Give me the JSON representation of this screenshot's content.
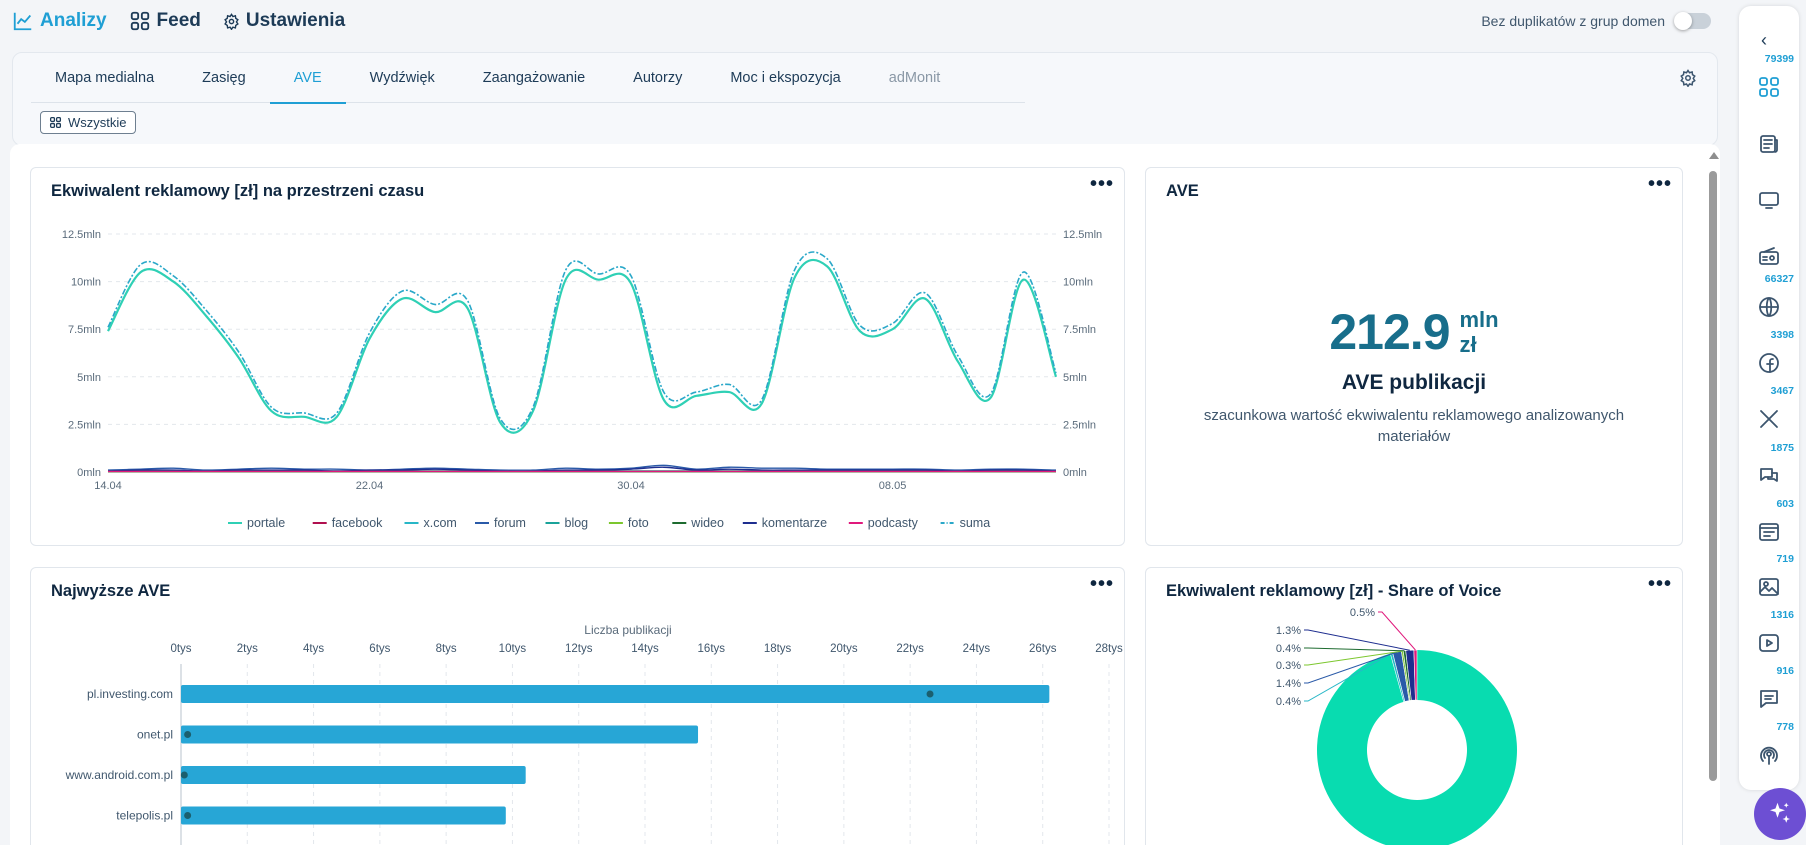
{
  "topnav": {
    "items": [
      {
        "label": "Analizy",
        "icon": "chart-line-icon"
      },
      {
        "label": "Feed",
        "icon": "grid-icon"
      },
      {
        "label": "Ustawienia",
        "icon": "gear-icon"
      }
    ],
    "duplicates_toggle_label": "Bez duplikatów z grup domen",
    "duplicates_toggle_on": false
  },
  "tabs": [
    "Mapa medialna",
    "Zasięg",
    "AVE",
    "Wydźwięk",
    "Zaangażowanie",
    "Autorzy",
    "Moc i ekspozycja",
    "adMonit"
  ],
  "active_tab": "AVE",
  "filter_chip": "Wszystkie",
  "cards": {
    "time_chart_title": "Ekwiwalent reklamowy [zł] na przestrzeni czasu",
    "ave_title": "AVE",
    "top_ave_title": "Najwyższe AVE",
    "sov_title": "Ekwiwalent reklamowy [zł] - Share of Voice",
    "menu_glyph": "•••"
  },
  "ave_summary": {
    "value": "212.9",
    "unit_line1": "mln",
    "unit_line2": "zł",
    "label": "AVE publikacji",
    "description": "szacunkowa wartość ekwiwalentu reklamowego analizowanych materiałów"
  },
  "sidebar": {
    "collapse_glyph": "‹",
    "items": [
      {
        "count": "79399",
        "icon": "grid-icon",
        "active": true
      },
      {
        "count": "",
        "icon": "newspaper-icon"
      },
      {
        "count": "",
        "icon": "tv-icon"
      },
      {
        "count": "",
        "icon": "radio-icon"
      },
      {
        "count": "66327",
        "icon": "globe-icon"
      },
      {
        "count": "3398",
        "icon": "facebook-icon"
      },
      {
        "count": "3467",
        "icon": "x-icon"
      },
      {
        "count": "1875",
        "icon": "forum-icon"
      },
      {
        "count": "603",
        "icon": "blog-icon"
      },
      {
        "count": "719",
        "icon": "photo-icon"
      },
      {
        "count": "1316",
        "icon": "video-icon"
      },
      {
        "count": "916",
        "icon": "comment-icon"
      },
      {
        "count": "778",
        "icon": "podcast-icon"
      }
    ],
    "magic_icon": "sparkle-icon"
  },
  "colors": {
    "accent": "#1f9fd4",
    "portale": "#2fd0b5",
    "facebook": "#b0104f",
    "x_com": "#28b7c7",
    "forum": "#2a5aa8",
    "blog": "#1aa39a",
    "foto": "#7cc72e",
    "wideo": "#1d6b2f",
    "komentarze": "#1e2e8f",
    "podcasty": "#e0197c",
    "suma": "#2aa8c9",
    "bar": "#27a6d6",
    "donut_main": "#08dcb0"
  },
  "chart_data": [
    {
      "type": "line",
      "title": "Ekwiwalent reklamowy [zł] na przestrzeni czasu",
      "x": [
        "14.04",
        "15.04",
        "16.04",
        "17.04",
        "18.04",
        "19.04",
        "20.04",
        "21.04",
        "22.04",
        "23.04",
        "24.04",
        "25.04",
        "26.04",
        "27.04",
        "28.04",
        "29.04",
        "30.04",
        "01.05",
        "02.05",
        "03.05",
        "04.05",
        "05.05",
        "06.05",
        "07.05",
        "08.05",
        "09.05",
        "10.05",
        "11.05",
        "12.05",
        "13.05"
      ],
      "x_ticks": [
        "14.04",
        "22.04",
        "30.04",
        "08.05"
      ],
      "y_ticks": [
        "0mln",
        "2.5mln",
        "5mln",
        "7.5mln",
        "10mln",
        "12.5mln"
      ],
      "y2_ticks": [
        "0mln",
        "2.5mln",
        "5mln",
        "7.5mln",
        "10mln",
        "12.5mln"
      ],
      "ylim": [
        0,
        12.5
      ],
      "grid": true,
      "legend_position": "bottom",
      "series": [
        {
          "name": "portale",
          "values": [
            7.4,
            10.5,
            10.0,
            8.2,
            6.0,
            3.2,
            2.9,
            2.9,
            7.0,
            9.1,
            8.4,
            8.6,
            2.6,
            3.2,
            10.1,
            10.1,
            9.9,
            3.8,
            4.0,
            4.2,
            3.6,
            10.2,
            10.8,
            7.4,
            7.5,
            9.1,
            5.8,
            3.9,
            10.1,
            5.0
          ]
        },
        {
          "name": "facebook",
          "values": [
            0.05,
            0.05,
            0.05,
            0.05,
            0.05,
            0.05,
            0.05,
            0.05,
            0.05,
            0.05,
            0.05,
            0.05,
            0.05,
            0.05,
            0.05,
            0.05,
            0.05,
            0.05,
            0.05,
            0.05,
            0.05,
            0.05,
            0.05,
            0.05,
            0.05,
            0.05,
            0.05,
            0.05,
            0.05,
            0.05
          ]
        },
        {
          "name": "x.com",
          "values": [
            0.05,
            0.05,
            0.05,
            0.05,
            0.05,
            0.05,
            0.05,
            0.05,
            0.05,
            0.05,
            0.05,
            0.05,
            0.05,
            0.05,
            0.05,
            0.05,
            0.05,
            0.05,
            0.05,
            0.05,
            0.05,
            0.05,
            0.05,
            0.05,
            0.05,
            0.05,
            0.05,
            0.05,
            0.05,
            0.05
          ]
        },
        {
          "name": "forum",
          "values": [
            0.1,
            0.15,
            0.2,
            0.1,
            0.15,
            0.2,
            0.15,
            0.15,
            0.1,
            0.15,
            0.2,
            0.15,
            0.1,
            0.1,
            0.2,
            0.15,
            0.2,
            0.35,
            0.15,
            0.25,
            0.2,
            0.2,
            0.15,
            0.15,
            0.15,
            0.15,
            0.1,
            0.15,
            0.15,
            0.1
          ]
        },
        {
          "name": "blog",
          "values": [
            0.05,
            0.05,
            0.05,
            0.05,
            0.05,
            0.05,
            0.05,
            0.05,
            0.05,
            0.05,
            0.05,
            0.05,
            0.05,
            0.05,
            0.05,
            0.05,
            0.05,
            0.05,
            0.05,
            0.05,
            0.05,
            0.05,
            0.05,
            0.05,
            0.05,
            0.05,
            0.05,
            0.05,
            0.05,
            0.05
          ]
        },
        {
          "name": "foto",
          "values": [
            0.02,
            0.02,
            0.02,
            0.02,
            0.02,
            0.02,
            0.02,
            0.02,
            0.02,
            0.02,
            0.02,
            0.02,
            0.02,
            0.02,
            0.02,
            0.02,
            0.02,
            0.02,
            0.02,
            0.02,
            0.02,
            0.02,
            0.02,
            0.02,
            0.02,
            0.02,
            0.02,
            0.02,
            0.02,
            0.02
          ]
        },
        {
          "name": "wideo",
          "values": [
            0.02,
            0.02,
            0.02,
            0.02,
            0.02,
            0.02,
            0.02,
            0.02,
            0.02,
            0.02,
            0.02,
            0.02,
            0.02,
            0.02,
            0.02,
            0.02,
            0.02,
            0.02,
            0.02,
            0.02,
            0.02,
            0.02,
            0.02,
            0.02,
            0.02,
            0.02,
            0.02,
            0.02,
            0.02,
            0.02
          ]
        },
        {
          "name": "komentarze",
          "values": [
            0.05,
            0.1,
            0.1,
            0.05,
            0.1,
            0.1,
            0.1,
            0.05,
            0.1,
            0.1,
            0.15,
            0.1,
            0.05,
            0.05,
            0.1,
            0.1,
            0.15,
            0.25,
            0.1,
            0.15,
            0.1,
            0.1,
            0.1,
            0.1,
            0.1,
            0.1,
            0.05,
            0.1,
            0.1,
            0.05
          ]
        },
        {
          "name": "podcasty",
          "values": [
            0.03,
            0.03,
            0.03,
            0.03,
            0.03,
            0.03,
            0.03,
            0.03,
            0.03,
            0.03,
            0.03,
            0.03,
            0.03,
            0.03,
            0.03,
            0.03,
            0.03,
            0.03,
            0.03,
            0.03,
            0.03,
            0.03,
            0.03,
            0.03,
            0.03,
            0.03,
            0.03,
            0.03,
            0.03,
            0.03
          ]
        },
        {
          "name": "suma",
          "values": [
            7.6,
            10.9,
            10.3,
            8.5,
            6.3,
            3.4,
            3.1,
            3.1,
            7.3,
            9.5,
            8.8,
            9.0,
            2.8,
            3.4,
            10.6,
            10.4,
            10.3,
            4.2,
            4.2,
            4.6,
            3.8,
            10.6,
            11.2,
            7.7,
            7.8,
            9.4,
            6.1,
            4.1,
            10.5,
            5.2
          ]
        }
      ]
    },
    {
      "type": "bar",
      "title": "Najwyższe AVE",
      "x2label": "Liczba publikacji",
      "x_ticks": [
        "0tys",
        "2tys",
        "4tys",
        "6tys",
        "8tys",
        "10tys",
        "12tys",
        "14tys",
        "16tys",
        "18tys",
        "20tys",
        "22tys",
        "24tys",
        "26tys",
        "28tys"
      ],
      "xlim": [
        0,
        28
      ],
      "grid": true,
      "categories": [
        "pl.investing.com",
        "onet.pl",
        "www.android.com.pl",
        "telepolis.pl"
      ],
      "values": [
        26.2,
        15.6,
        10.4,
        9.8
      ],
      "publications": [
        22.6,
        0.2,
        0.1,
        0.2
      ]
    },
    {
      "type": "pie",
      "title": "Ekwiwalent reklamowy [zł] - Share of Voice",
      "labels": [
        "0.5%",
        "1.3%",
        "0.4%",
        "0.3%",
        "1.4%",
        "0.4%"
      ],
      "values": [
        0.5,
        1.3,
        0.4,
        0.3,
        1.4,
        0.4
      ],
      "main_value": 95.7,
      "slice_colors": [
        "#e0197c",
        "#1e2e8f",
        "#1d6b2f",
        "#7cc72e",
        "#2a5aa8",
        "#28b7c7"
      ]
    }
  ]
}
